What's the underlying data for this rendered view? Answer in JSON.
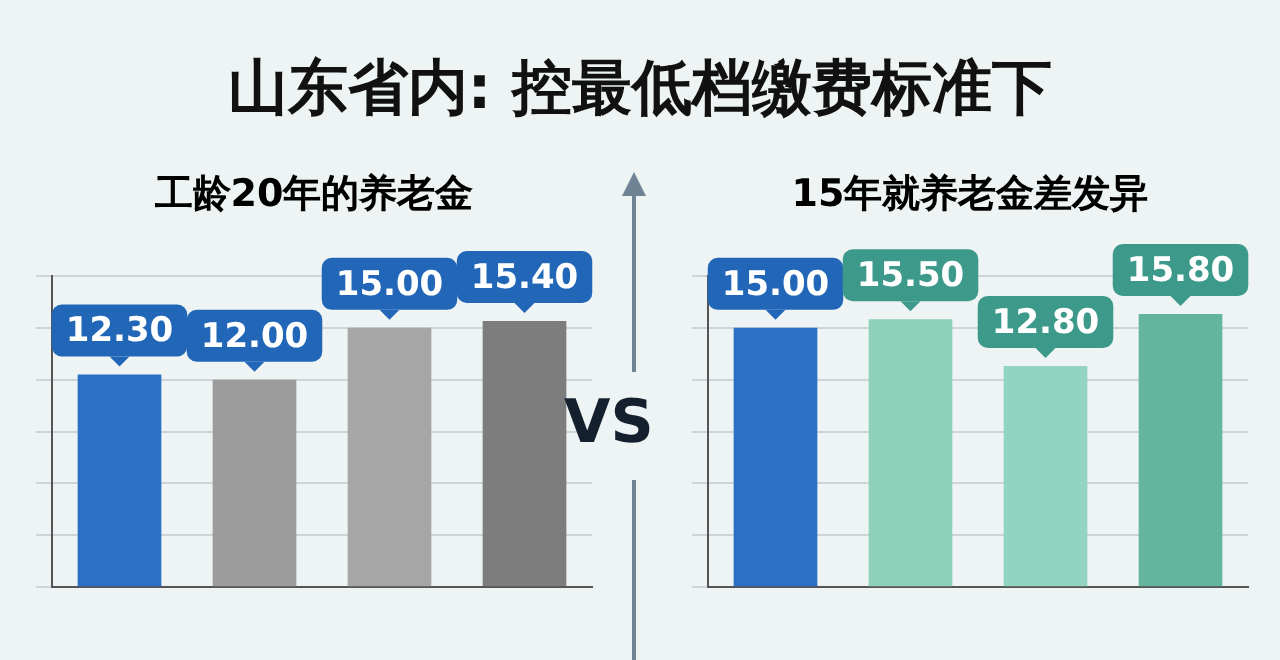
{
  "chart_data": [
    {
      "type": "bar",
      "title": "山东省内: 控最低档缴费标准下",
      "subtitle": "工龄20年的养老金",
      "categories": [
        null,
        null,
        null,
        null
      ],
      "values": [
        12.3,
        12.0,
        15.0,
        15.4
      ],
      "colors": [
        "#2a70c6",
        "#9c9c9c",
        "#a6a6a6",
        "#7d7d7d"
      ],
      "value_labels": [
        "12.30",
        "12.00",
        "15.00",
        "15.40"
      ],
      "ylim": [
        0,
        18
      ],
      "yticks": [
        {
          "value": 0,
          "label": null
        },
        {
          "value": 3,
          "label": null
        },
        {
          "value": 6,
          "label": null
        },
        {
          "value": 9,
          "label": null
        },
        {
          "value": 12,
          "label": null
        },
        {
          "value": 15,
          "label": null
        },
        {
          "value": 18,
          "label": null
        }
      ],
      "grid": "y"
    },
    {
      "type": "bar",
      "subtitle": "15年就养老金差发异",
      "annotations": [
        "VS"
      ],
      "categories": [
        null,
        null,
        null,
        null
      ],
      "values": [
        15.0,
        15.5,
        12.8,
        15.8
      ],
      "colors": [
        "#2a70c6",
        "#8fd0ba",
        "#93d4c0",
        "#63b59d"
      ],
      "value_labels": [
        "15.00",
        "15.50",
        "12.80",
        "15.80"
      ],
      "ylim": [
        0,
        18
      ],
      "yticks": [
        {
          "value": 0,
          "label": null
        },
        {
          "value": 3,
          "label": null
        },
        {
          "value": 6,
          "label": null
        },
        {
          "value": 9,
          "label": null
        },
        {
          "value": 12,
          "label": null
        },
        {
          "value": 15,
          "label": null
        },
        {
          "value": 18,
          "label": null
        }
      ],
      "grid": "y"
    }
  ]
}
